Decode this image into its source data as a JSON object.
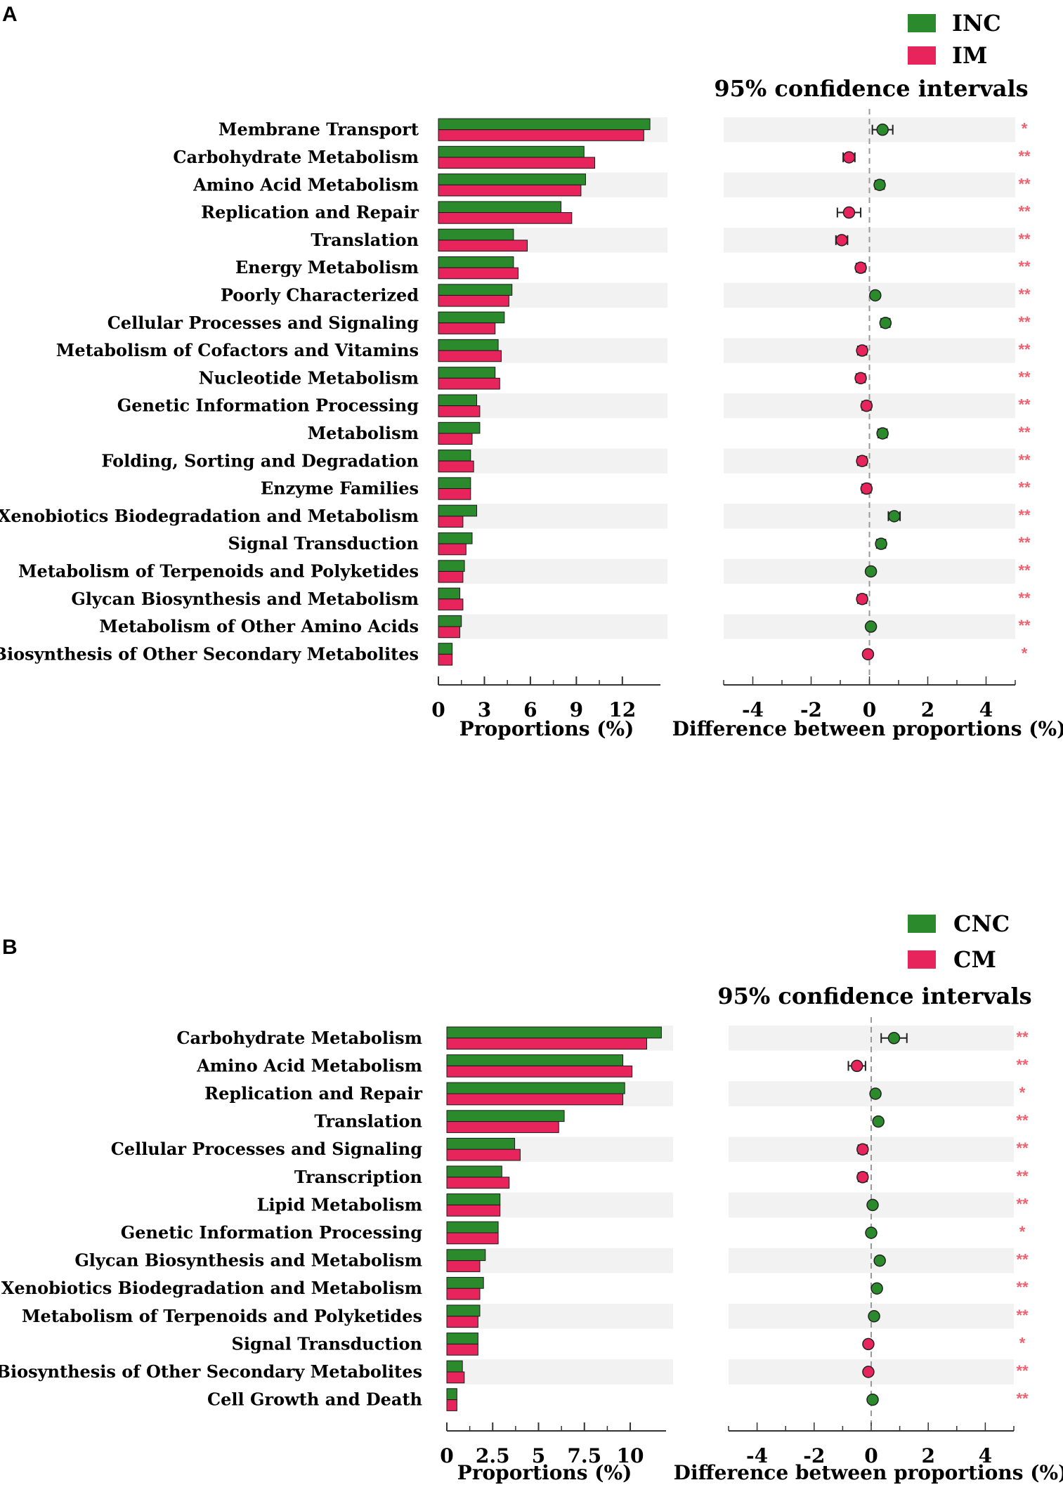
{
  "colors": {
    "group1": "#2b8a2b",
    "group2": "#e8245c",
    "stripe": "#f2f2f2",
    "significance": "#f0606e",
    "zeroline": "#999999"
  },
  "chart_data": [
    {
      "panel_label": "A",
      "type": "bar",
      "legend": [
        {
          "name": "INC",
          "color": "#2b8a2b"
        },
        {
          "name": "IM",
          "color": "#e8245c"
        }
      ],
      "ci_title": "95% confidence intervals",
      "categories": [
        "Membrane Transport",
        "Carbohydrate Metabolism",
        "Amino Acid Metabolism",
        "Replication and Repair",
        "Translation",
        "Energy Metabolism",
        "Poorly Characterized",
        "Cellular Processes and Signaling",
        "Metabolism of Cofactors and Vitamins",
        "Nucleotide Metabolism",
        "Genetic Information Processing",
        "Metabolism",
        "Folding, Sorting and Degradation",
        "Enzyme Families",
        "Xenobiotics Biodegradation and Metabolism",
        "Signal Transduction",
        "Metabolism of Terpenoids and Polyketides",
        "Glycan Biosynthesis and Metabolism",
        "Metabolism of Other Amino Acids",
        "Biosynthesis of Other Secondary Metabolites"
      ],
      "series": [
        {
          "name": "INC",
          "values": [
            13.8,
            9.5,
            9.6,
            8.0,
            4.9,
            4.9,
            4.8,
            4.3,
            3.9,
            3.7,
            2.5,
            2.7,
            2.1,
            2.1,
            2.5,
            2.2,
            1.7,
            1.4,
            1.5,
            0.9
          ]
        },
        {
          "name": "IM",
          "values": [
            13.4,
            10.2,
            9.3,
            8.7,
            5.8,
            5.2,
            4.6,
            3.7,
            4.1,
            4.0,
            2.7,
            2.2,
            2.3,
            2.1,
            1.6,
            1.8,
            1.6,
            1.6,
            1.4,
            0.9
          ]
        }
      ],
      "bar_axis": {
        "label": "Proportions (%)",
        "ticks": [
          "0",
          "3",
          "6",
          "9",
          "12"
        ],
        "tick_values": [
          0,
          3,
          6,
          9,
          12
        ],
        "max": 14.3
      },
      "difference": {
        "values": [
          0.45,
          -0.7,
          0.35,
          -0.7,
          -0.95,
          -0.3,
          0.2,
          0.55,
          -0.25,
          -0.3,
          -0.1,
          0.45,
          -0.25,
          -0.1,
          0.85,
          0.4,
          0.05,
          -0.25,
          0.05,
          -0.05
        ],
        "ci_low": [
          0.1,
          -0.9,
          0.2,
          -1.1,
          -1.15,
          -0.45,
          0.1,
          0.4,
          -0.4,
          -0.45,
          -0.25,
          0.3,
          -0.4,
          -0.25,
          0.65,
          0.25,
          -0.05,
          -0.4,
          -0.05,
          -0.15
        ],
        "ci_high": [
          0.8,
          -0.5,
          0.5,
          -0.3,
          -0.75,
          -0.15,
          0.3,
          0.7,
          -0.1,
          -0.15,
          0.05,
          0.6,
          -0.1,
          0.05,
          1.05,
          0.55,
          0.15,
          -0.1,
          0.15,
          0.05
        ],
        "significance": [
          "*",
          "**",
          "**",
          "**",
          "**",
          "**",
          "**",
          "**",
          "**",
          "**",
          "**",
          "**",
          "**",
          "**",
          "**",
          "**",
          "**",
          "**",
          "**",
          "*"
        ],
        "axis": {
          "label": "Difference between proportions (%)",
          "ticks": [
            "-4",
            "-2",
            "0",
            "2",
            "4"
          ],
          "tick_values": [
            -4,
            -2,
            0,
            2,
            4
          ],
          "xlim": [
            -5,
            5
          ]
        }
      }
    },
    {
      "panel_label": "B",
      "type": "bar",
      "legend": [
        {
          "name": "CNC",
          "color": "#2b8a2b"
        },
        {
          "name": "CM",
          "color": "#e8245c"
        }
      ],
      "ci_title": "95% confidence intervals",
      "categories": [
        "Carbohydrate Metabolism",
        "Amino Acid Metabolism",
        "Replication and Repair",
        "Translation",
        "Cellular Processes and Signaling",
        "Transcription",
        "Lipid Metabolism",
        "Genetic Information Processing",
        "Glycan Biosynthesis and Metabolism",
        "Xenobiotics Biodegradation and Metabolism",
        "Metabolism of Terpenoids and Polyketides",
        "Signal Transduction",
        "Biosynthesis of Other Secondary Metabolites",
        "Cell Growth and Death"
      ],
      "series": [
        {
          "name": "CNC",
          "values": [
            11.7,
            9.6,
            9.7,
            6.4,
            3.7,
            3.0,
            2.9,
            2.8,
            2.1,
            2.0,
            1.8,
            1.7,
            0.85,
            0.55
          ]
        },
        {
          "name": "CM",
          "values": [
            10.9,
            10.1,
            9.6,
            6.1,
            4.0,
            3.4,
            2.9,
            2.8,
            1.8,
            1.8,
            1.7,
            1.7,
            0.95,
            0.55
          ]
        }
      ],
      "bar_axis": {
        "label": "Proportions (%)",
        "ticks": [
          "0",
          "2.5",
          "5",
          "7.5",
          "10"
        ],
        "tick_values": [
          0,
          2.5,
          5,
          7.5,
          10
        ],
        "max": 11.8
      },
      "difference": {
        "values": [
          0.8,
          -0.5,
          0.15,
          0.25,
          -0.3,
          -0.3,
          0.05,
          0.0,
          0.3,
          0.2,
          0.1,
          -0.1,
          -0.1,
          0.05
        ],
        "ci_low": [
          0.35,
          -0.8,
          0.05,
          0.15,
          -0.45,
          -0.45,
          -0.05,
          -0.1,
          0.2,
          0.1,
          0.0,
          -0.2,
          -0.2,
          -0.05
        ],
        "ci_high": [
          1.25,
          -0.2,
          0.25,
          0.35,
          -0.15,
          -0.15,
          0.15,
          0.1,
          0.4,
          0.3,
          0.2,
          0.0,
          0.0,
          0.15
        ],
        "significance": [
          "**",
          "**",
          "*",
          "**",
          "**",
          "**",
          "**",
          "*",
          "**",
          "**",
          "**",
          "*",
          "**",
          "**"
        ],
        "axis": {
          "label": "Difference between proportions (%)",
          "ticks": [
            "-4",
            "-2",
            "0",
            "2",
            "4"
          ],
          "tick_values": [
            -4,
            -2,
            0,
            2,
            4
          ],
          "xlim": [
            -5,
            5
          ]
        }
      }
    }
  ]
}
